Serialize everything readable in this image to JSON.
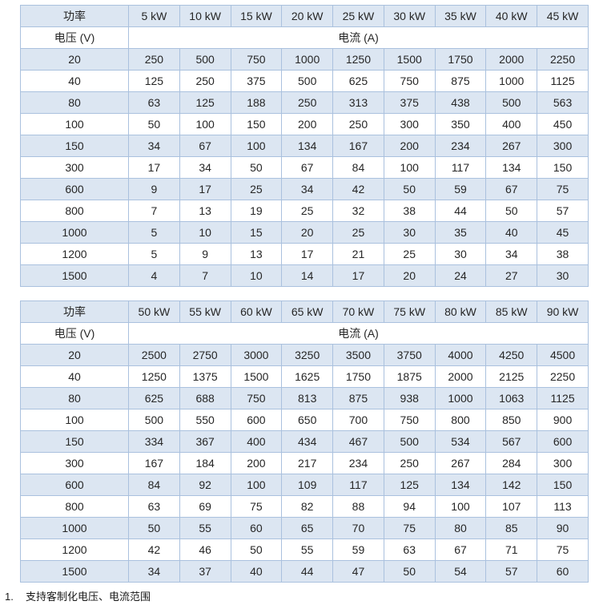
{
  "colors": {
    "band_fill": "#dce6f2",
    "border": "#aac1de",
    "text": "#262626",
    "background": "#ffffff"
  },
  "tables": [
    {
      "power_header": "功率",
      "voltage_header": "电压 (V)",
      "current_header": "电流 (A)",
      "columns": [
        "5 kW",
        "10 kW",
        "15 kW",
        "20 kW",
        "25 kW",
        "30 kW",
        "35 kW",
        "40 kW",
        "45 kW"
      ],
      "rows": [
        {
          "voltage": "20",
          "currents": [
            "250",
            "500",
            "750",
            "1000",
            "1250",
            "1500",
            "1750",
            "2000",
            "2250"
          ]
        },
        {
          "voltage": "40",
          "currents": [
            "125",
            "250",
            "375",
            "500",
            "625",
            "750",
            "875",
            "1000",
            "1125"
          ]
        },
        {
          "voltage": "80",
          "currents": [
            "63",
            "125",
            "188",
            "250",
            "313",
            "375",
            "438",
            "500",
            "563"
          ]
        },
        {
          "voltage": "100",
          "currents": [
            "50",
            "100",
            "150",
            "200",
            "250",
            "300",
            "350",
            "400",
            "450"
          ]
        },
        {
          "voltage": "150",
          "currents": [
            "34",
            "67",
            "100",
            "134",
            "167",
            "200",
            "234",
            "267",
            "300"
          ]
        },
        {
          "voltage": "300",
          "currents": [
            "17",
            "34",
            "50",
            "67",
            "84",
            "100",
            "117",
            "134",
            "150"
          ]
        },
        {
          "voltage": "600",
          "currents": [
            "9",
            "17",
            "25",
            "34",
            "42",
            "50",
            "59",
            "67",
            "75"
          ]
        },
        {
          "voltage": "800",
          "currents": [
            "7",
            "13",
            "19",
            "25",
            "32",
            "38",
            "44",
            "50",
            "57"
          ]
        },
        {
          "voltage": "1000",
          "currents": [
            "5",
            "10",
            "15",
            "20",
            "25",
            "30",
            "35",
            "40",
            "45"
          ]
        },
        {
          "voltage": "1200",
          "currents": [
            "5",
            "9",
            "13",
            "17",
            "21",
            "25",
            "30",
            "34",
            "38"
          ]
        },
        {
          "voltage": "1500",
          "currents": [
            "4",
            "7",
            "10",
            "14",
            "17",
            "20",
            "24",
            "27",
            "30"
          ]
        }
      ]
    },
    {
      "power_header": "功率",
      "voltage_header": "电压 (V)",
      "current_header": "电流 (A)",
      "columns": [
        "50 kW",
        "55 kW",
        "60 kW",
        "65 kW",
        "70 kW",
        "75 kW",
        "80 kW",
        "85 kW",
        "90 kW"
      ],
      "rows": [
        {
          "voltage": "20",
          "currents": [
            "2500",
            "2750",
            "3000",
            "3250",
            "3500",
            "3750",
            "4000",
            "4250",
            "4500"
          ]
        },
        {
          "voltage": "40",
          "currents": [
            "1250",
            "1375",
            "1500",
            "1625",
            "1750",
            "1875",
            "2000",
            "2125",
            "2250"
          ]
        },
        {
          "voltage": "80",
          "currents": [
            "625",
            "688",
            "750",
            "813",
            "875",
            "938",
            "1000",
            "1063",
            "1125"
          ]
        },
        {
          "voltage": "100",
          "currents": [
            "500",
            "550",
            "600",
            "650",
            "700",
            "750",
            "800",
            "850",
            "900"
          ]
        },
        {
          "voltage": "150",
          "currents": [
            "334",
            "367",
            "400",
            "434",
            "467",
            "500",
            "534",
            "567",
            "600"
          ]
        },
        {
          "voltage": "300",
          "currents": [
            "167",
            "184",
            "200",
            "217",
            "234",
            "250",
            "267",
            "284",
            "300"
          ]
        },
        {
          "voltage": "600",
          "currents": [
            "84",
            "92",
            "100",
            "109",
            "117",
            "125",
            "134",
            "142",
            "150"
          ]
        },
        {
          "voltage": "800",
          "currents": [
            "63",
            "69",
            "75",
            "82",
            "88",
            "94",
            "100",
            "107",
            "113"
          ]
        },
        {
          "voltage": "1000",
          "currents": [
            "50",
            "55",
            "60",
            "65",
            "70",
            "75",
            "80",
            "85",
            "90"
          ]
        },
        {
          "voltage": "1200",
          "currents": [
            "42",
            "46",
            "50",
            "55",
            "59",
            "63",
            "67",
            "71",
            "75"
          ]
        },
        {
          "voltage": "1500",
          "currents": [
            "34",
            "37",
            "40",
            "44",
            "47",
            "50",
            "54",
            "57",
            "60"
          ]
        }
      ]
    }
  ],
  "footnote": {
    "index": "1.",
    "text": "支持客制化电压、电流范围"
  }
}
